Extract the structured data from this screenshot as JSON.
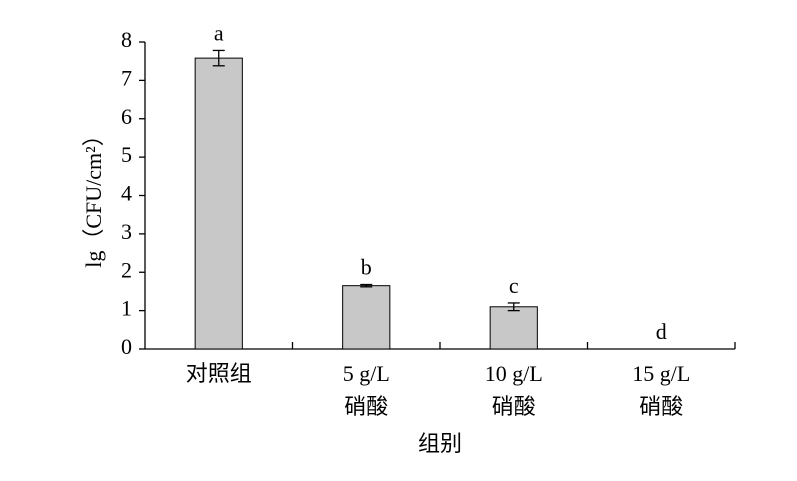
{
  "chart_data": {
    "type": "bar",
    "categories": [
      [
        "对照组"
      ],
      [
        "5 g/L",
        "硝酸"
      ],
      [
        "10 g/L",
        "硝酸"
      ],
      [
        "15 g/L",
        "硝酸"
      ]
    ],
    "values": [
      7.58,
      1.65,
      1.1,
      0
    ],
    "errors": [
      0.2,
      0.03,
      0.1,
      null
    ],
    "annotations": [
      "a",
      "b",
      "c",
      "d"
    ],
    "color": "#c8c8c8",
    "ylim": [
      0,
      8
    ],
    "yticks": [
      0,
      1,
      2,
      3,
      4,
      5,
      6,
      7,
      8
    ],
    "ylabel": "lg（CFU/cm²）",
    "xlabel": "组别"
  }
}
